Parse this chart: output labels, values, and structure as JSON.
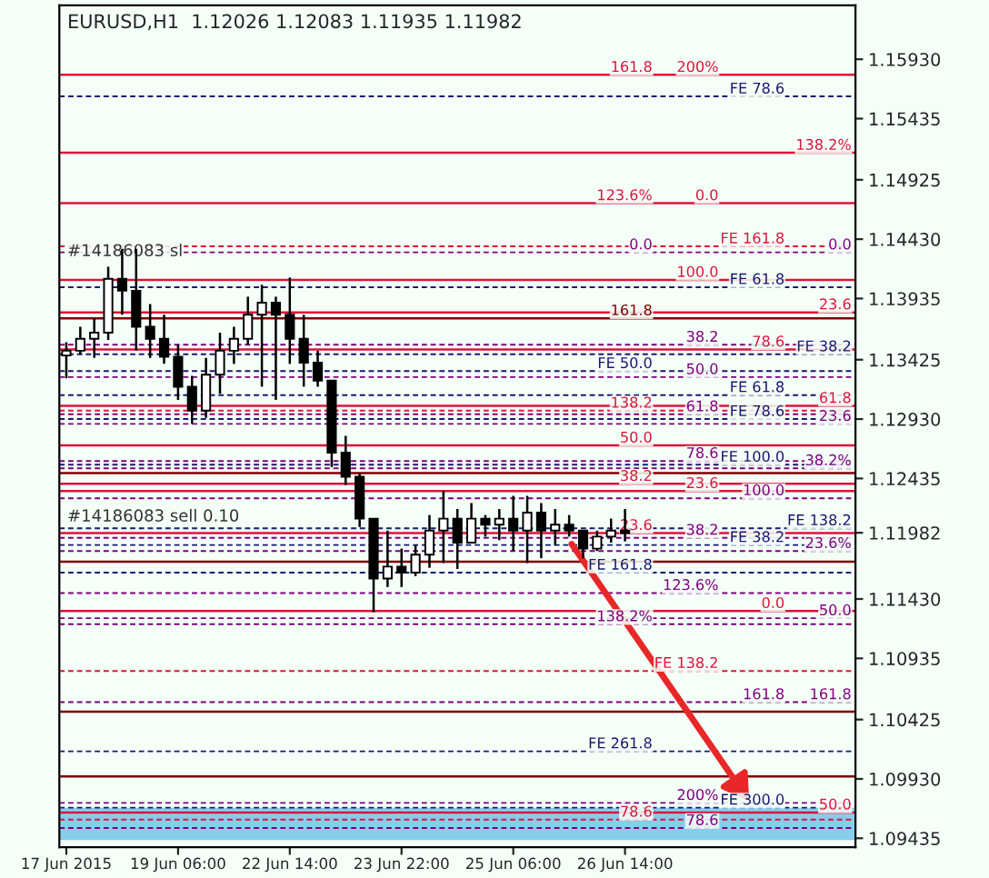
{
  "chart_data": {
    "type": "candlestick",
    "title": "EURUSD,H1  1.12026 1.12083 1.11935 1.11982",
    "categories": [
      "17 Jun 2015",
      null,
      null,
      null,
      null,
      null,
      null,
      null,
      "19 Jun 06:00",
      null,
      null,
      null,
      null,
      null,
      null,
      null,
      "22 Jun 14:00",
      null,
      null,
      null,
      null,
      null,
      null,
      null,
      "23 Jun 22:00",
      null,
      null,
      null,
      null,
      null,
      null,
      null,
      "25 Jun 06:00",
      null,
      null,
      null,
      null,
      null,
      null,
      null,
      "26 Jun 14:00",
      null,
      null,
      null,
      null,
      null,
      null,
      null,
      null,
      null,
      null,
      null,
      null,
      null,
      null,
      null,
      null
    ],
    "ohlc": [
      [
        1.1346,
        1.1357,
        1.1327,
        1.135
      ],
      [
        1.135,
        1.137,
        1.1347,
        1.136
      ],
      [
        1.136,
        1.1377,
        1.1344,
        1.1365
      ],
      [
        1.1365,
        1.142,
        1.1359,
        1.141
      ],
      [
        1.141,
        1.1435,
        1.138,
        1.14
      ],
      [
        1.14,
        1.1435,
        1.135,
        1.137
      ],
      [
        1.137,
        1.1389,
        1.1344,
        1.136
      ],
      [
        1.136,
        1.138,
        1.1339,
        1.1345
      ],
      [
        1.1345,
        1.1355,
        1.1309,
        1.132
      ],
      [
        1.132,
        1.1329,
        1.1289,
        1.13
      ],
      [
        1.13,
        1.1344,
        1.1294,
        1.133
      ],
      [
        1.133,
        1.1365,
        1.1314,
        1.135
      ],
      [
        1.135,
        1.137,
        1.1339,
        1.136
      ],
      [
        1.136,
        1.1395,
        1.1355,
        1.138
      ],
      [
        1.138,
        1.1405,
        1.132,
        1.139
      ],
      [
        1.139,
        1.1395,
        1.1309,
        1.138
      ],
      [
        1.138,
        1.1411,
        1.1339,
        1.136
      ],
      [
        1.136,
        1.138,
        1.132,
        1.134
      ],
      [
        1.134,
        1.135,
        1.132,
        1.1325
      ],
      [
        1.1325,
        1.1325,
        1.1253,
        1.1265
      ],
      [
        1.1265,
        1.1279,
        1.1238,
        1.1245
      ],
      [
        1.1245,
        1.1248,
        1.1203,
        1.121
      ],
      [
        1.121,
        1.121,
        1.1132,
        1.116
      ],
      [
        1.116,
        1.12,
        1.1153,
        1.117
      ],
      [
        1.117,
        1.1185,
        1.1153,
        1.1165
      ],
      [
        1.1165,
        1.1188,
        1.1162,
        1.118
      ],
      [
        1.118,
        1.1213,
        1.1169,
        1.12
      ],
      [
        1.12,
        1.1233,
        1.1173,
        1.121
      ],
      [
        1.121,
        1.1218,
        1.1168,
        1.119
      ],
      [
        1.119,
        1.1223,
        1.119,
        1.121
      ],
      [
        1.121,
        1.1213,
        1.1195,
        1.1205
      ],
      [
        1.1205,
        1.1218,
        1.1192,
        1.121
      ],
      [
        1.121,
        1.1229,
        1.1183,
        1.12
      ],
      [
        1.12,
        1.1229,
        1.1173,
        1.1215
      ],
      [
        1.1215,
        1.1223,
        1.1177,
        1.12
      ],
      [
        1.12,
        1.1218,
        1.1188,
        1.1205
      ],
      [
        1.1205,
        1.1213,
        1.1195,
        1.12
      ],
      [
        1.12,
        1.12,
        1.1177,
        1.1185
      ],
      [
        1.1185,
        1.12,
        1.1183,
        1.1195
      ],
      [
        1.1195,
        1.121,
        1.119,
        1.12
      ],
      [
        1.12,
        1.1218,
        1.1191,
        1.1198
      ],
      null,
      null,
      null,
      null,
      null,
      null,
      null,
      null,
      null,
      null,
      null,
      null,
      null,
      null,
      null,
      null
    ],
    "color": "#000000",
    "ylim": [
      1.0936,
      1.1638
    ],
    "yticks": [
      {
        "value": 1.1593,
        "label": "1.15930"
      },
      {
        "value": 1.15435,
        "label": "1.15435"
      },
      {
        "value": 1.14925,
        "label": "1.14925"
      },
      {
        "value": 1.1443,
        "label": "1.14430"
      },
      {
        "value": 1.13935,
        "label": "1.13935"
      },
      {
        "value": 1.13425,
        "label": "1.13425"
      },
      {
        "value": 1.1293,
        "label": "1.12930"
      },
      {
        "value": 1.12435,
        "label": "1.12435"
      },
      {
        "value": 1.11982,
        "label": "1.11982"
      },
      {
        "value": 1.1143,
        "label": "1.11430"
      },
      {
        "value": 1.10935,
        "label": "1.10935"
      },
      {
        "value": 1.10425,
        "label": "1.10425"
      },
      {
        "value": 1.0993,
        "label": "1.09930"
      },
      {
        "value": 1.09435,
        "label": "1.09435"
      }
    ],
    "ref_lines": [
      {
        "axis": "y",
        "value": 1.158,
        "color": "#dc143c",
        "line_style": "solid"
      },
      {
        "axis": "y",
        "value": 1.1562,
        "color": "#191970",
        "line_style": "dashed"
      },
      {
        "axis": "y",
        "value": 1.1515,
        "color": "#dc143c",
        "line_style": "solid"
      },
      {
        "axis": "y",
        "value": 1.1473,
        "color": "#dc143c",
        "line_style": "solid"
      },
      {
        "axis": "y",
        "value": 1.1437,
        "color": "#dc143c",
        "line_style": "dashed"
      },
      {
        "axis": "y",
        "value": 1.1432,
        "color": "#800080",
        "line_style": "dashed"
      },
      {
        "axis": "y",
        "value": 1.1409,
        "color": "#dc143c",
        "line_style": "solid"
      },
      {
        "axis": "y",
        "value": 1.1403,
        "color": "#191970",
        "line_style": "dashed"
      },
      {
        "axis": "y",
        "value": 1.1382,
        "color": "#dc143c",
        "line_style": "solid"
      },
      {
        "axis": "y",
        "value": 1.1377,
        "color": "#800000",
        "line_style": "solid"
      },
      {
        "axis": "y",
        "value": 1.1355,
        "color": "#800080",
        "line_style": "dashed"
      },
      {
        "axis": "y",
        "value": 1.1351,
        "color": "#dc143c",
        "line_style": "solid"
      },
      {
        "axis": "y",
        "value": 1.1347,
        "color": "#191970",
        "line_style": "dashed"
      },
      {
        "axis": "y",
        "value": 1.1333,
        "color": "#191970",
        "line_style": "dashed"
      },
      {
        "axis": "y",
        "value": 1.1328,
        "color": "#800080",
        "line_style": "dashed"
      },
      {
        "axis": "y",
        "value": 1.1313,
        "color": "#191970",
        "line_style": "dashed"
      },
      {
        "axis": "y",
        "value": 1.1304,
        "color": "#dc143c",
        "line_style": "solid"
      },
      {
        "axis": "y",
        "value": 1.13,
        "color": "#dc143c",
        "line_style": "dashed"
      },
      {
        "axis": "y",
        "value": 1.1297,
        "color": "#800080",
        "line_style": "dashed"
      },
      {
        "axis": "y",
        "value": 1.1293,
        "color": "#191970",
        "line_style": "dashed"
      },
      {
        "axis": "y",
        "value": 1.1289,
        "color": "#800080",
        "line_style": "dashed"
      },
      {
        "axis": "y",
        "value": 1.1271,
        "color": "#dc143c",
        "line_style": "solid"
      },
      {
        "axis": "y",
        "value": 1.1258,
        "color": "#800080",
        "line_style": "dashed"
      },
      {
        "axis": "y",
        "value": 1.1255,
        "color": "#191970",
        "line_style": "dashed"
      },
      {
        "axis": "y",
        "value": 1.1252,
        "color": "#800080",
        "line_style": "dashed"
      },
      {
        "axis": "y",
        "value": 1.1248,
        "color": "#800000",
        "line_style": "solid"
      },
      {
        "axis": "y",
        "value": 1.1239,
        "color": "#dc143c",
        "line_style": "solid"
      },
      {
        "axis": "y",
        "value": 1.1233,
        "color": "#dc143c",
        "line_style": "solid"
      },
      {
        "axis": "y",
        "value": 1.1227,
        "color": "#800080",
        "line_style": "dashed"
      },
      {
        "axis": "y",
        "value": 1.1202,
        "color": "#191970",
        "line_style": "dashed"
      },
      {
        "axis": "y",
        "value": 1.1198,
        "color": "#dc143c",
        "line_style": "solid"
      },
      {
        "axis": "y",
        "value": 1.1194,
        "color": "#800080",
        "line_style": "dashed"
      },
      {
        "axis": "y",
        "value": 1.1188,
        "color": "#191970",
        "line_style": "dashed"
      },
      {
        "axis": "y",
        "value": 1.1183,
        "color": "#800080",
        "line_style": "dashed"
      },
      {
        "axis": "y",
        "value": 1.1174,
        "color": "#800000",
        "line_style": "solid"
      },
      {
        "axis": "y",
        "value": 1.1165,
        "color": "#191970",
        "line_style": "dashed"
      },
      {
        "axis": "y",
        "value": 1.1148,
        "color": "#800080",
        "line_style": "dashed"
      },
      {
        "axis": "y",
        "value": 1.1133,
        "color": "#dc143c",
        "line_style": "solid"
      },
      {
        "axis": "y",
        "value": 1.1127,
        "color": "#800080",
        "line_style": "dashed"
      },
      {
        "axis": "y",
        "value": 1.1122,
        "color": "#800080",
        "line_style": "dashed"
      },
      {
        "axis": "y",
        "value": 1.1083,
        "color": "#dc143c",
        "line_style": "dashed"
      },
      {
        "axis": "y",
        "value": 1.1057,
        "color": "#800080",
        "line_style": "dashed"
      },
      {
        "axis": "y",
        "value": 1.1049,
        "color": "#800000",
        "line_style": "solid"
      },
      {
        "axis": "y",
        "value": 1.1016,
        "color": "#191970",
        "line_style": "dashed"
      },
      {
        "axis": "y",
        "value": 1.0995,
        "color": "#800000",
        "line_style": "solid"
      },
      {
        "axis": "y",
        "value": 1.0973,
        "color": "#800080",
        "line_style": "dashed"
      },
      {
        "axis": "y",
        "value": 1.0969,
        "color": "#191970",
        "line_style": "dashed"
      },
      {
        "axis": "y",
        "value": 1.0965,
        "color": "#dc143c",
        "line_style": "solid"
      },
      {
        "axis": "y",
        "value": 1.0959,
        "color": "#dc143c",
        "line_style": "dashed"
      },
      {
        "axis": "y",
        "value": 1.0952,
        "color": "#800080",
        "line_style": "dashed"
      }
    ],
    "bands": [
      {
        "axis": "y",
        "from": 1.0942,
        "to": 1.0969,
        "color": "#87ceeb"
      }
    ],
    "annotations": [
      {
        "text": "161.8",
        "y": 1.158
      },
      {
        "text": "200%",
        "y": 1.158
      },
      {
        "text": "FE 78.6",
        "y": 1.1562
      },
      {
        "text": "138.2%",
        "y": 1.1515
      },
      {
        "text": "123.6%",
        "y": 1.1473
      },
      {
        "text": "0.0",
        "y": 1.1473
      },
      {
        "text": "FE 161.8",
        "y": 1.1437
      },
      {
        "text": "0.0",
        "y": 1.1432
      },
      {
        "text": "0.0",
        "y": 1.1432
      },
      {
        "text": "100.0",
        "y": 1.1409
      },
      {
        "text": "FE 61.8",
        "y": 1.1403
      },
      {
        "text": "23.6",
        "y": 1.1382
      },
      {
        "text": "161.8",
        "y": 1.1377
      },
      {
        "text": "38.2",
        "y": 1.1355
      },
      {
        "text": "78.6",
        "y": 1.1351
      },
      {
        "text": "FE 38.2",
        "y": 1.1347
      },
      {
        "text": "FE 50.0",
        "y": 1.1333
      },
      {
        "text": "50.0",
        "y": 1.1328
      },
      {
        "text": "FE 61.8",
        "y": 1.1313
      },
      {
        "text": "61.8",
        "y": 1.1304
      },
      {
        "text": "138.2",
        "y": 1.13
      },
      {
        "text": "61.8",
        "y": 1.1297
      },
      {
        "text": "FE 78.6",
        "y": 1.1293
      },
      {
        "text": "23.6",
        "y": 1.1289
      },
      {
        "text": "50.0",
        "y": 1.1271
      },
      {
        "text": "78.6",
        "y": 1.1258
      },
      {
        "text": "FE 100.0",
        "y": 1.1255
      },
      {
        "text": "38.2%",
        "y": 1.1252
      },
      {
        "text": "38.2",
        "y": 1.1239
      },
      {
        "text": "23.6",
        "y": 1.1233
      },
      {
        "text": "100.0",
        "y": 1.1227
      },
      {
        "text": "FE 138.2",
        "y": 1.1202
      },
      {
        "text": "23.6",
        "y": 1.1198
      },
      {
        "text": "38.2",
        "y": 1.1194
      },
      {
        "text": "FE 38.2",
        "y": 1.1188
      },
      {
        "text": "23.6%",
        "y": 1.1183
      },
      {
        "text": "FE 161.8",
        "y": 1.1165
      },
      {
        "text": "123.6%",
        "y": 1.1148
      },
      {
        "text": "0.0",
        "y": 1.1133
      },
      {
        "text": "50.0",
        "y": 1.1127
      },
      {
        "text": "138.2%",
        "y": 1.1122
      },
      {
        "text": "FE 138.2",
        "y": 1.1083
      },
      {
        "text": "161.8",
        "y": 1.1057
      },
      {
        "text": "161.8",
        "y": 1.1057
      },
      {
        "text": "FE 261.8",
        "y": 1.1016
      },
      {
        "text": "200%",
        "y": 1.0973
      },
      {
        "text": "FE 300.0",
        "y": 1.0969
      },
      {
        "text": "50.0",
        "y": 1.0965
      },
      {
        "text": "78.6",
        "y": 1.0959
      },
      {
        "text": "78.6",
        "y": 1.0952
      },
      "#14186083 sl",
      "#14186083 sell 0.10"
    ],
    "grid": false,
    "legend": false
  }
}
